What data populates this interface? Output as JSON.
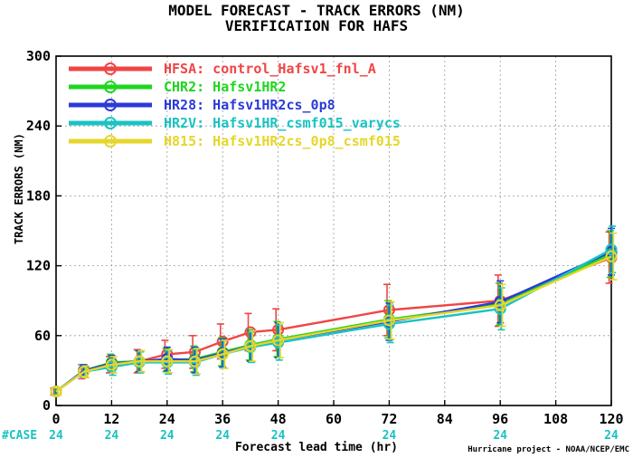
{
  "chart_data": {
    "type": "line",
    "title": "MODEL FORECAST - TRACK ERRORS (NM)",
    "subtitle": "VERIFICATION FOR HAFS",
    "xlabel": "Forecast lead time (hr)",
    "ylabel": "TRACK ERRORS (NM)",
    "credit": "Hurricane project - NOAA/NCEP/EMC",
    "xlim": [
      0,
      120
    ],
    "ylim": [
      0,
      300
    ],
    "x_ticks": [
      0,
      12,
      24,
      36,
      48,
      60,
      72,
      84,
      96,
      108,
      120
    ],
    "y_ticks": [
      0,
      60,
      120,
      180,
      240,
      300
    ],
    "grid": true,
    "legend_position": "top-left",
    "case_label": "#CASE",
    "case_x": [
      0,
      12,
      24,
      36,
      48,
      72,
      96,
      120
    ],
    "case_counts": [
      "24",
      "24",
      "24",
      "24",
      "24",
      "24",
      "24",
      "24"
    ],
    "case_color": "#19c3c3",
    "x": [
      0,
      6,
      12,
      18,
      24,
      30,
      36,
      42,
      48,
      72,
      96,
      120
    ],
    "series": [
      {
        "name": "HFSA:  control_Hafsv1_fnl_A",
        "color": "#f04545",
        "values": [
          12,
          29,
          35,
          38,
          44,
          46,
          55,
          63,
          65,
          82,
          90,
          127
        ],
        "err": [
          3,
          6,
          7,
          10,
          12,
          14,
          15,
          16,
          18,
          22,
          22,
          22
        ]
      },
      {
        "name": "CHR2:  Hafsv1HR2",
        "color": "#1ed61e",
        "values": [
          12,
          30,
          37,
          38,
          39,
          40,
          46,
          52,
          57,
          74,
          87,
          130
        ],
        "err": [
          3,
          5,
          7,
          9,
          10,
          11,
          12,
          13,
          15,
          16,
          18,
          20
        ]
      },
      {
        "name": "HR28:  Hafsv1HR2cs_0p8",
        "color": "#2a3bd8",
        "values": [
          12,
          30,
          36,
          38,
          40,
          39,
          45,
          51,
          56,
          72,
          89,
          132
        ],
        "err": [
          3,
          5,
          7,
          9,
          10,
          11,
          12,
          13,
          15,
          16,
          18,
          20
        ]
      },
      {
        "name": "HR2V:  Hafsv1HR_csmf015_varycs",
        "color": "#19c3c3",
        "values": [
          12,
          29,
          33,
          37,
          37,
          37,
          44,
          50,
          54,
          70,
          83,
          134
        ],
        "err": [
          3,
          5,
          7,
          9,
          10,
          11,
          12,
          13,
          15,
          16,
          18,
          20
        ]
      },
      {
        "name": "H815:  Hafsv1HR2cs_0p8_csmf015",
        "color": "#e6d629",
        "values": [
          12,
          29,
          35,
          38,
          38,
          38,
          44,
          51,
          56,
          73,
          86,
          128
        ],
        "err": [
          3,
          5,
          7,
          9,
          10,
          11,
          12,
          13,
          15,
          16,
          18,
          20
        ]
      }
    ]
  }
}
